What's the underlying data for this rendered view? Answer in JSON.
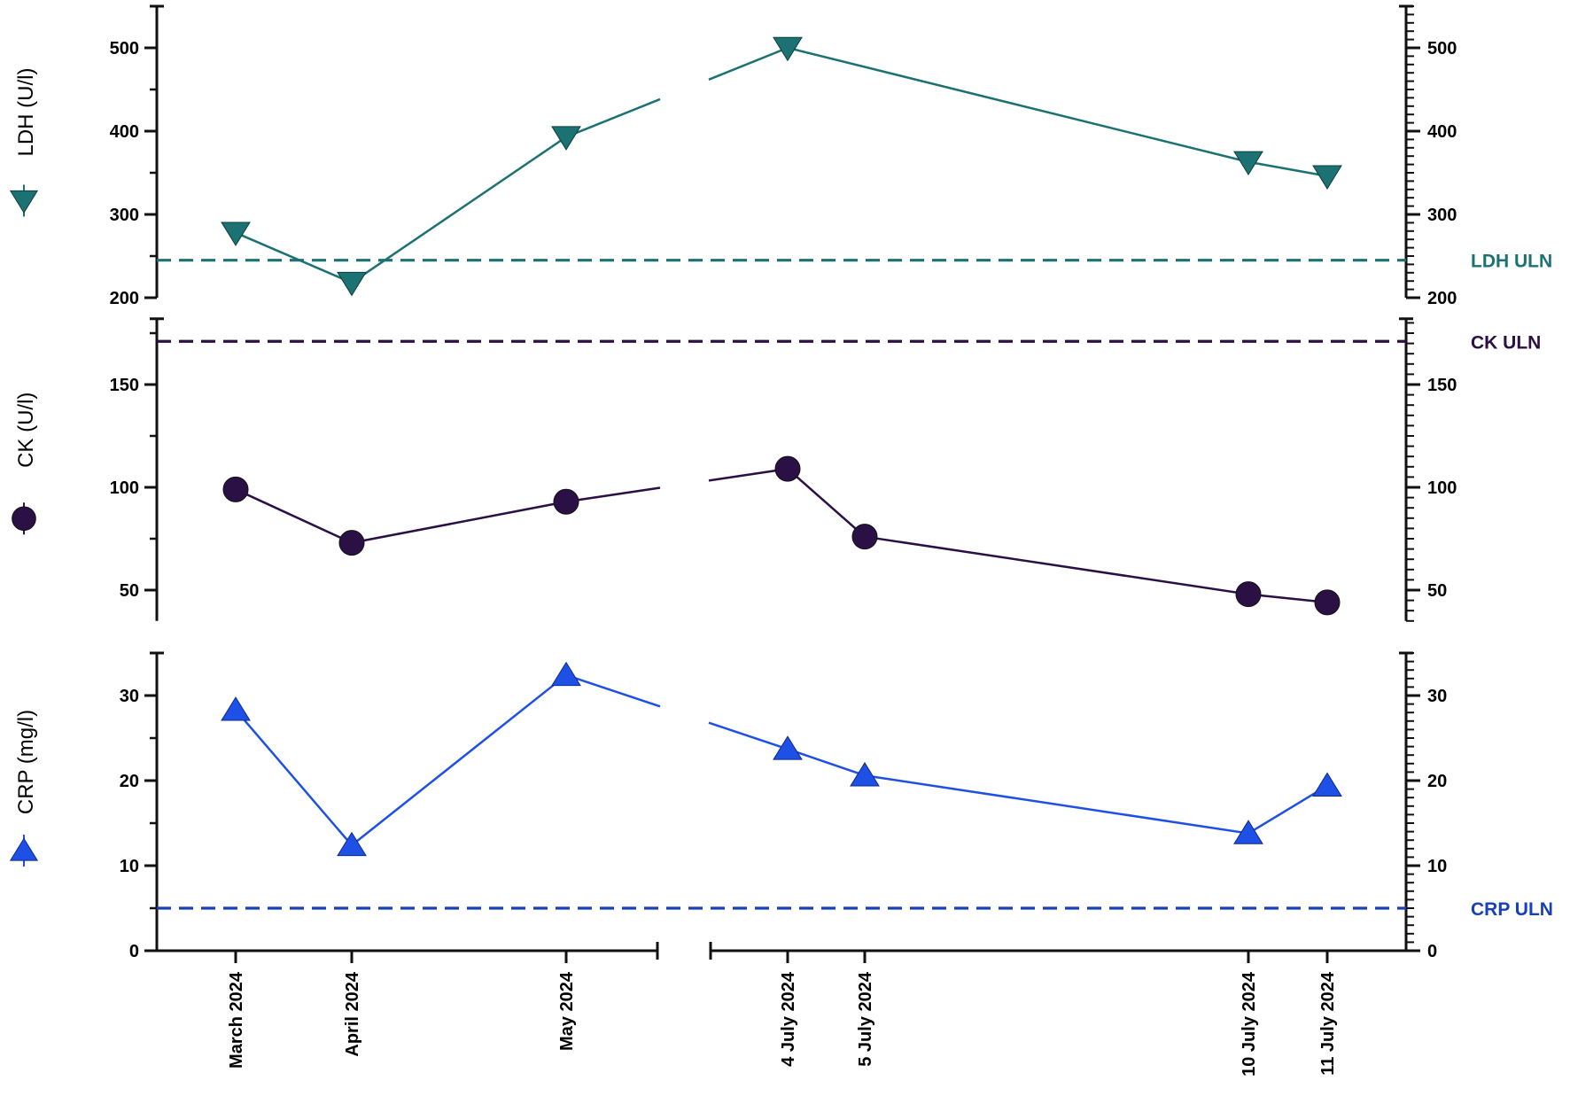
{
  "chart_data": {
    "type": "line",
    "x_categories": [
      "March 2024",
      "April 2024",
      "May 2024",
      "4 July 2024",
      "5 July 2024",
      "10 July 2024",
      "11 July 2024"
    ],
    "x_axis_break": "between May 2024 and 4 July 2024",
    "axes_mirrored": "left and right",
    "panels": [
      {
        "id": "ldh",
        "ylabel": "LDH (U/l)",
        "marker": "triangle-down",
        "color": "#1c7272",
        "ylim": [
          200,
          550
        ],
        "yticks": [
          200,
          300,
          400,
          500
        ],
        "uln": {
          "label": "LDH ULN",
          "value": 245,
          "color": "#1c7272"
        },
        "values": [
          {
            "x": "March 2024",
            "y": 278
          },
          {
            "x": "April 2024",
            "y": 218
          },
          {
            "x": "May 2024",
            "y": 393
          },
          {
            "x": "4 July 2024",
            "y": 500
          },
          {
            "x": "10 July 2024",
            "y": 363
          },
          {
            "x": "11 July 2024",
            "y": 346
          }
        ]
      },
      {
        "id": "ck",
        "ylabel": "CK (U/l)",
        "marker": "circle",
        "color": "#2a1044",
        "ylim": [
          35,
          182
        ],
        "yticks": [
          50,
          100,
          150
        ],
        "uln": {
          "label": "CK ULN",
          "value": 171,
          "color": "#2a1044"
        },
        "values": [
          {
            "x": "March 2024",
            "y": 99
          },
          {
            "x": "April 2024",
            "y": 73
          },
          {
            "x": "May 2024",
            "y": 93
          },
          {
            "x": "4 July 2024",
            "y": 109
          },
          {
            "x": "5 July 2024",
            "y": 76
          },
          {
            "x": "10 July 2024",
            "y": 48
          },
          {
            "x": "11 July 2024",
            "y": 44
          }
        ]
      },
      {
        "id": "crp",
        "ylabel": "CRP (mg/l)",
        "marker": "triangle-up",
        "color": "#1e50e6",
        "ylim": [
          0,
          35
        ],
        "yticks": [
          0,
          10,
          20,
          30
        ],
        "uln": {
          "label": "CRP ULN",
          "value": 5,
          "color": "#1840b8"
        },
        "values": [
          {
            "x": "March 2024",
            "y": 28.3
          },
          {
            "x": "April 2024",
            "y": 12.4
          },
          {
            "x": "May 2024",
            "y": 32.4
          },
          {
            "x": "4 July 2024",
            "y": 23.7
          },
          {
            "x": "5 July 2024",
            "y": 20.6
          },
          {
            "x": "10 July 2024",
            "y": 13.8
          },
          {
            "x": "11 July 2024",
            "y": 19.4
          }
        ]
      }
    ]
  }
}
